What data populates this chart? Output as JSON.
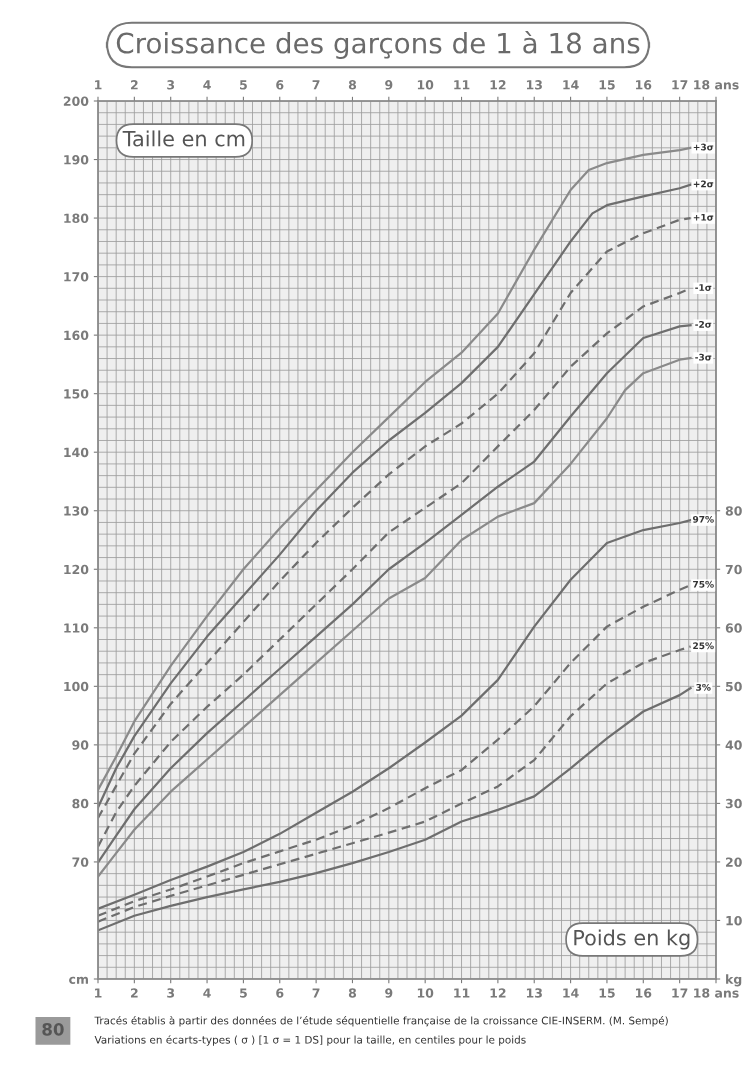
{
  "chart_data": {
    "type": "line",
    "title": "Croissance des garçons de 1 à 18 ans",
    "xlim": [
      1,
      18
    ],
    "xticks": [
      1,
      2,
      3,
      4,
      5,
      6,
      7,
      8,
      9,
      10,
      11,
      12,
      13,
      14,
      15,
      16,
      17,
      {
        "value": 18,
        "label": "18 ans"
      }
    ],
    "x2lim": [
      1,
      18
    ],
    "x2ticks": [
      1,
      2,
      3,
      4,
      5,
      6,
      7,
      8,
      9,
      10,
      11,
      12,
      13,
      14,
      15,
      16,
      17,
      {
        "value": 18,
        "label": "18 ans"
      }
    ],
    "ylim": [
      50,
      200
    ],
    "yticks": [
      {
        "value": 50,
        "label": "cm"
      },
      70,
      80,
      90,
      100,
      110,
      120,
      130,
      140,
      150,
      160,
      170,
      180,
      190,
      200
    ],
    "y2lim": [
      0,
      150
    ],
    "y2ticks": [
      {
        "value": 0,
        "label": "kg"
      },
      10,
      20,
      30,
      40,
      50,
      60,
      70,
      80
    ],
    "grid": true,
    "legend": false,
    "series": [
      {
        "name": "+3σ",
        "color": "#8a8a8a",
        "line_style": "solid",
        "axis": "y",
        "x": [
          1,
          1.5,
          2,
          3,
          4,
          5,
          6,
          7,
          8,
          9,
          10,
          11,
          12,
          13,
          14,
          14.5,
          15,
          16,
          17,
          17.3
        ],
        "values": [
          82.3,
          88,
          94,
          103.5,
          112,
          120,
          127,
          133.5,
          140,
          146,
          152,
          157,
          163.7,
          174.6,
          184.8,
          188.2,
          189.4,
          190.8,
          191.6,
          192
        ]
      },
      {
        "name": "+2σ",
        "color": "#6e6e6e",
        "line_style": "solid",
        "axis": "y",
        "x": [
          1,
          1.5,
          2,
          3,
          4,
          5,
          6,
          7,
          8,
          9,
          10,
          11,
          12,
          13,
          14,
          14.6,
          15,
          16,
          17,
          17.3
        ],
        "values": [
          79.3,
          86,
          91.5,
          100.5,
          108.5,
          115.5,
          122.5,
          130,
          136.5,
          142,
          146.7,
          151.8,
          158,
          167,
          176,
          180.8,
          182.2,
          183.7,
          185.1,
          185.7
        ]
      },
      {
        "name": "+1σ",
        "color": "#6e6e6e",
        "line_style": "dashed",
        "axis": "y",
        "x": [
          1,
          1.5,
          2,
          3,
          4,
          5,
          6,
          7,
          8,
          9,
          10,
          11,
          12,
          13,
          14,
          15,
          16,
          17,
          17.3
        ],
        "values": [
          77.5,
          83,
          88.5,
          97,
          104,
          111,
          118,
          124.5,
          130.5,
          136.2,
          141,
          144.9,
          150,
          156.9,
          167.2,
          174.3,
          177.4,
          179.7,
          180
        ]
      },
      {
        "name": "-1σ",
        "color": "#6e6e6e",
        "line_style": "dashed",
        "axis": "y",
        "x": [
          1,
          1.5,
          2,
          3,
          4,
          5,
          6,
          7,
          8,
          9,
          10,
          11,
          12,
          13,
          14,
          15,
          16,
          17,
          17.3
        ],
        "values": [
          72.6,
          78.5,
          83,
          90.5,
          96.5,
          102,
          108,
          114,
          120,
          126.3,
          130.5,
          134.7,
          141,
          147.2,
          154.6,
          160.3,
          164.9,
          167.2,
          168
        ]
      },
      {
        "name": "-2σ",
        "color": "#6e6e6e",
        "line_style": "solid",
        "axis": "y",
        "x": [
          1,
          1.5,
          2,
          3,
          4,
          5,
          6,
          7,
          8,
          9,
          10,
          11,
          12,
          13,
          14,
          15,
          16,
          17,
          17.3
        ],
        "values": [
          69.9,
          74.5,
          79,
          86,
          92,
          97.5,
          103,
          108.5,
          114,
          120,
          124.5,
          129.3,
          134.1,
          138.4,
          146.1,
          153.5,
          159.5,
          161.5,
          161.7
        ]
      },
      {
        "name": "-3σ",
        "color": "#8a8a8a",
        "line_style": "solid",
        "axis": "y",
        "x": [
          1,
          1.5,
          2,
          3,
          4,
          5,
          6,
          7,
          8,
          9,
          10,
          11,
          12,
          13,
          14,
          15,
          15.5,
          16,
          17,
          17.3
        ],
        "values": [
          67.5,
          71.5,
          75.5,
          82,
          87.5,
          93,
          98.5,
          104,
          109.5,
          115,
          118.5,
          125,
          129,
          131.3,
          138,
          145.8,
          150.6,
          153.5,
          155.8,
          156.1
        ]
      },
      {
        "name": "97%",
        "color": "#6e6e6e",
        "line_style": "solid",
        "axis": "y2",
        "x": [
          1,
          2,
          3,
          4,
          5,
          6,
          7,
          8,
          9,
          10,
          11,
          12,
          13,
          14,
          15,
          16,
          17,
          17.3
        ],
        "values": [
          12.0,
          14.4,
          16.9,
          19.2,
          21.7,
          24.8,
          28.4,
          32.0,
          36.0,
          40.4,
          45.0,
          51.1,
          60.2,
          68.2,
          74.5,
          76.7,
          77.9,
          78.4
        ]
      },
      {
        "name": "75%",
        "color": "#6e6e6e",
        "line_style": "dashed",
        "axis": "y2",
        "x": [
          1,
          2,
          3,
          4,
          5,
          6,
          7,
          8,
          9,
          10,
          11,
          12,
          13,
          14,
          15,
          16,
          17,
          17.3
        ],
        "values": [
          10.8,
          13.3,
          15.3,
          17.5,
          19.8,
          21.8,
          23.8,
          26.2,
          29.2,
          32.6,
          35.7,
          40.9,
          46.6,
          54.0,
          60.2,
          63.6,
          66.5,
          67.3
        ]
      },
      {
        "name": "25%",
        "color": "#6e6e6e",
        "line_style": "dashed",
        "axis": "y2",
        "x": [
          1,
          2,
          3,
          4,
          5,
          6,
          7,
          8,
          9,
          10,
          11,
          12,
          13,
          14,
          15,
          16,
          17,
          17.3
        ],
        "values": [
          9.8,
          12.3,
          14.2,
          16.0,
          17.8,
          19.6,
          21.4,
          23.2,
          25.0,
          26.9,
          30.0,
          32.9,
          37.4,
          44.9,
          50.5,
          54.0,
          56.2,
          56.8
        ]
      },
      {
        "name": "3%",
        "color": "#6e6e6e",
        "line_style": "solid",
        "axis": "y2",
        "x": [
          1,
          2,
          3,
          4,
          5,
          6,
          7,
          8,
          9,
          10,
          11,
          12,
          13,
          14,
          15,
          16,
          17,
          17.3
        ],
        "values": [
          8.3,
          10.8,
          12.5,
          14.0,
          15.3,
          16.6,
          18.1,
          19.8,
          21.7,
          23.8,
          26.9,
          28.9,
          31.2,
          36.0,
          41.1,
          45.7,
          48.5,
          49.7
        ]
      }
    ],
    "annotations": [
      "Taille en cm",
      "Poids en kg",
      "Tracés établis à partir des données de l’étude séquentielle française de la croissance CIE-INSERM. (M. Sempé)",
      "Variations en écarts-types ( σ ) [1 σ = 1 DS] pour la taille, en centiles pour le poids",
      "80"
    ]
  }
}
